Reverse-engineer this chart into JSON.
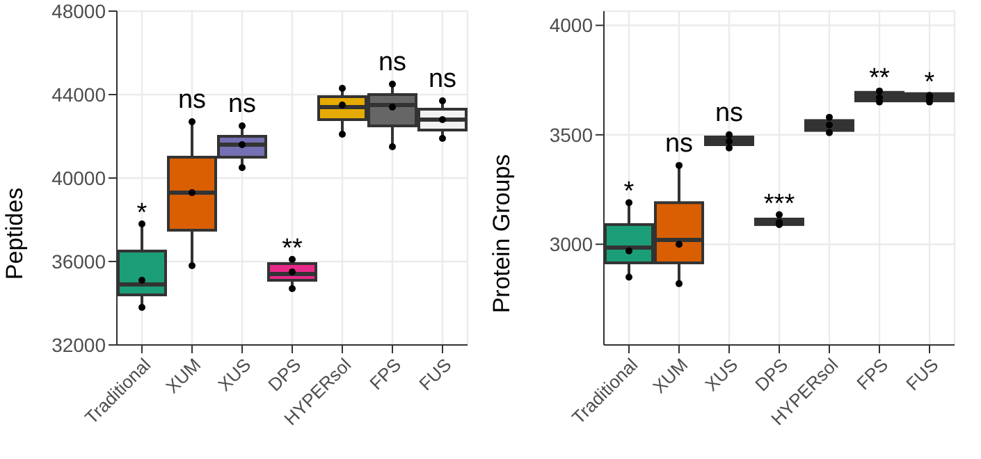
{
  "chart_data": [
    {
      "type": "box",
      "ylabel": "Peptides",
      "categories": [
        "Traditional",
        "XUM",
        "XUS",
        "DPS",
        "HYPERsol",
        "FPS",
        "FUS"
      ],
      "colors": [
        "#1b9e77",
        "#d95f02",
        "#7570b3",
        "#e7298a",
        "#e6ab02",
        "#666666",
        "#f2f2f2"
      ],
      "boxes": [
        {
          "low": 33800,
          "q1": 34400,
          "median": 34900,
          "q3": 36500,
          "high": 37800
        },
        {
          "low": 35800,
          "q1": 37500,
          "median": 39300,
          "q3": 41000,
          "high": 42700
        },
        {
          "low": 40500,
          "q1": 41000,
          "median": 41600,
          "q3": 42000,
          "high": 42500
        },
        {
          "low": 34700,
          "q1": 35100,
          "median": 35400,
          "q3": 35900,
          "high": 36100
        },
        {
          "low": 42100,
          "q1": 42800,
          "median": 43400,
          "q3": 43900,
          "high": 44300
        },
        {
          "low": 41500,
          "q1": 42500,
          "median": 43500,
          "q3": 44000,
          "high": 44500
        },
        {
          "low": 41900,
          "q1": 42300,
          "median": 42800,
          "q3": 43300,
          "high": 43700
        }
      ],
      "series": [
        {
          "type": "scatter",
          "color": "#000000",
          "x": [
            "Traditional",
            "Traditional",
            "Traditional",
            "XUM",
            "XUM",
            "XUM",
            "XUS",
            "XUS",
            "XUS",
            "DPS",
            "DPS",
            "DPS",
            "HYPERsol",
            "HYPERsol",
            "HYPERsol",
            "FPS",
            "FPS",
            "FPS",
            "FUS",
            "FUS",
            "FUS"
          ],
          "values": [
            37800,
            35100,
            33800,
            42700,
            39300,
            35800,
            42500,
            41600,
            40500,
            36100,
            35500,
            34700,
            44300,
            43500,
            42100,
            44500,
            43400,
            41500,
            43700,
            42800,
            41900
          ]
        }
      ],
      "ylim": [
        32000,
        48000
      ],
      "yticks": [
        32000,
        36000,
        40000,
        44000,
        48000
      ],
      "grid": true,
      "value_labels": [
        "*",
        "ns",
        "ns",
        "**",
        null,
        "ns",
        "ns"
      ]
    },
    {
      "type": "box",
      "ylabel": "Protein Groups",
      "categories": [
        "Traditional",
        "XUM",
        "XUS",
        "DPS",
        "HYPERsol",
        "FPS",
        "FUS"
      ],
      "colors": [
        "#1b9e77",
        "#d95f02",
        "#333333",
        "#333333",
        "#333333",
        "#333333",
        "#333333"
      ],
      "boxes": [
        {
          "low": 2850,
          "q1": 2915,
          "median": 2985,
          "q3": 3090,
          "high": 3190
        },
        {
          "low": 2820,
          "q1": 2915,
          "median": 3020,
          "q3": 3190,
          "high": 3360
        },
        {
          "low": 3440,
          "q1": 3455,
          "median": 3470,
          "q3": 3490,
          "high": 3500
        },
        {
          "low": 3085,
          "q1": 3090,
          "median": 3100,
          "q3": 3115,
          "high": 3135
        },
        {
          "low": 3505,
          "q1": 3520,
          "median": 3540,
          "q3": 3565,
          "high": 3580
        },
        {
          "low": 3640,
          "q1": 3655,
          "median": 3672,
          "q3": 3694,
          "high": 3710
        },
        {
          "low": 3650,
          "q1": 3655,
          "median": 3672,
          "q3": 3688,
          "high": 3690
        }
      ],
      "series": [
        {
          "type": "scatter",
          "color": "#000000",
          "x": [
            "Traditional",
            "Traditional",
            "Traditional",
            "XUM",
            "XUM",
            "XUM",
            "XUS",
            "XUS",
            "XUS",
            "DPS",
            "DPS",
            "DPS",
            "HYPERsol",
            "HYPERsol",
            "HYPERsol",
            "FPS",
            "FPS",
            "FPS",
            "FUS",
            "FUS",
            "FUS"
          ],
          "values": [
            3190,
            2970,
            2850,
            3360,
            3000,
            2820,
            3500,
            3470,
            3440,
            3135,
            3100,
            3090,
            3580,
            3545,
            3510,
            3700,
            3670,
            3650,
            3680,
            3670,
            3650
          ]
        }
      ],
      "ylim": [
        2540,
        4065
      ],
      "yticks": [
        3000,
        3500,
        4000
      ],
      "grid": true,
      "value_labels": [
        "*",
        "ns",
        "ns",
        "***",
        null,
        "**",
        "*"
      ]
    }
  ]
}
